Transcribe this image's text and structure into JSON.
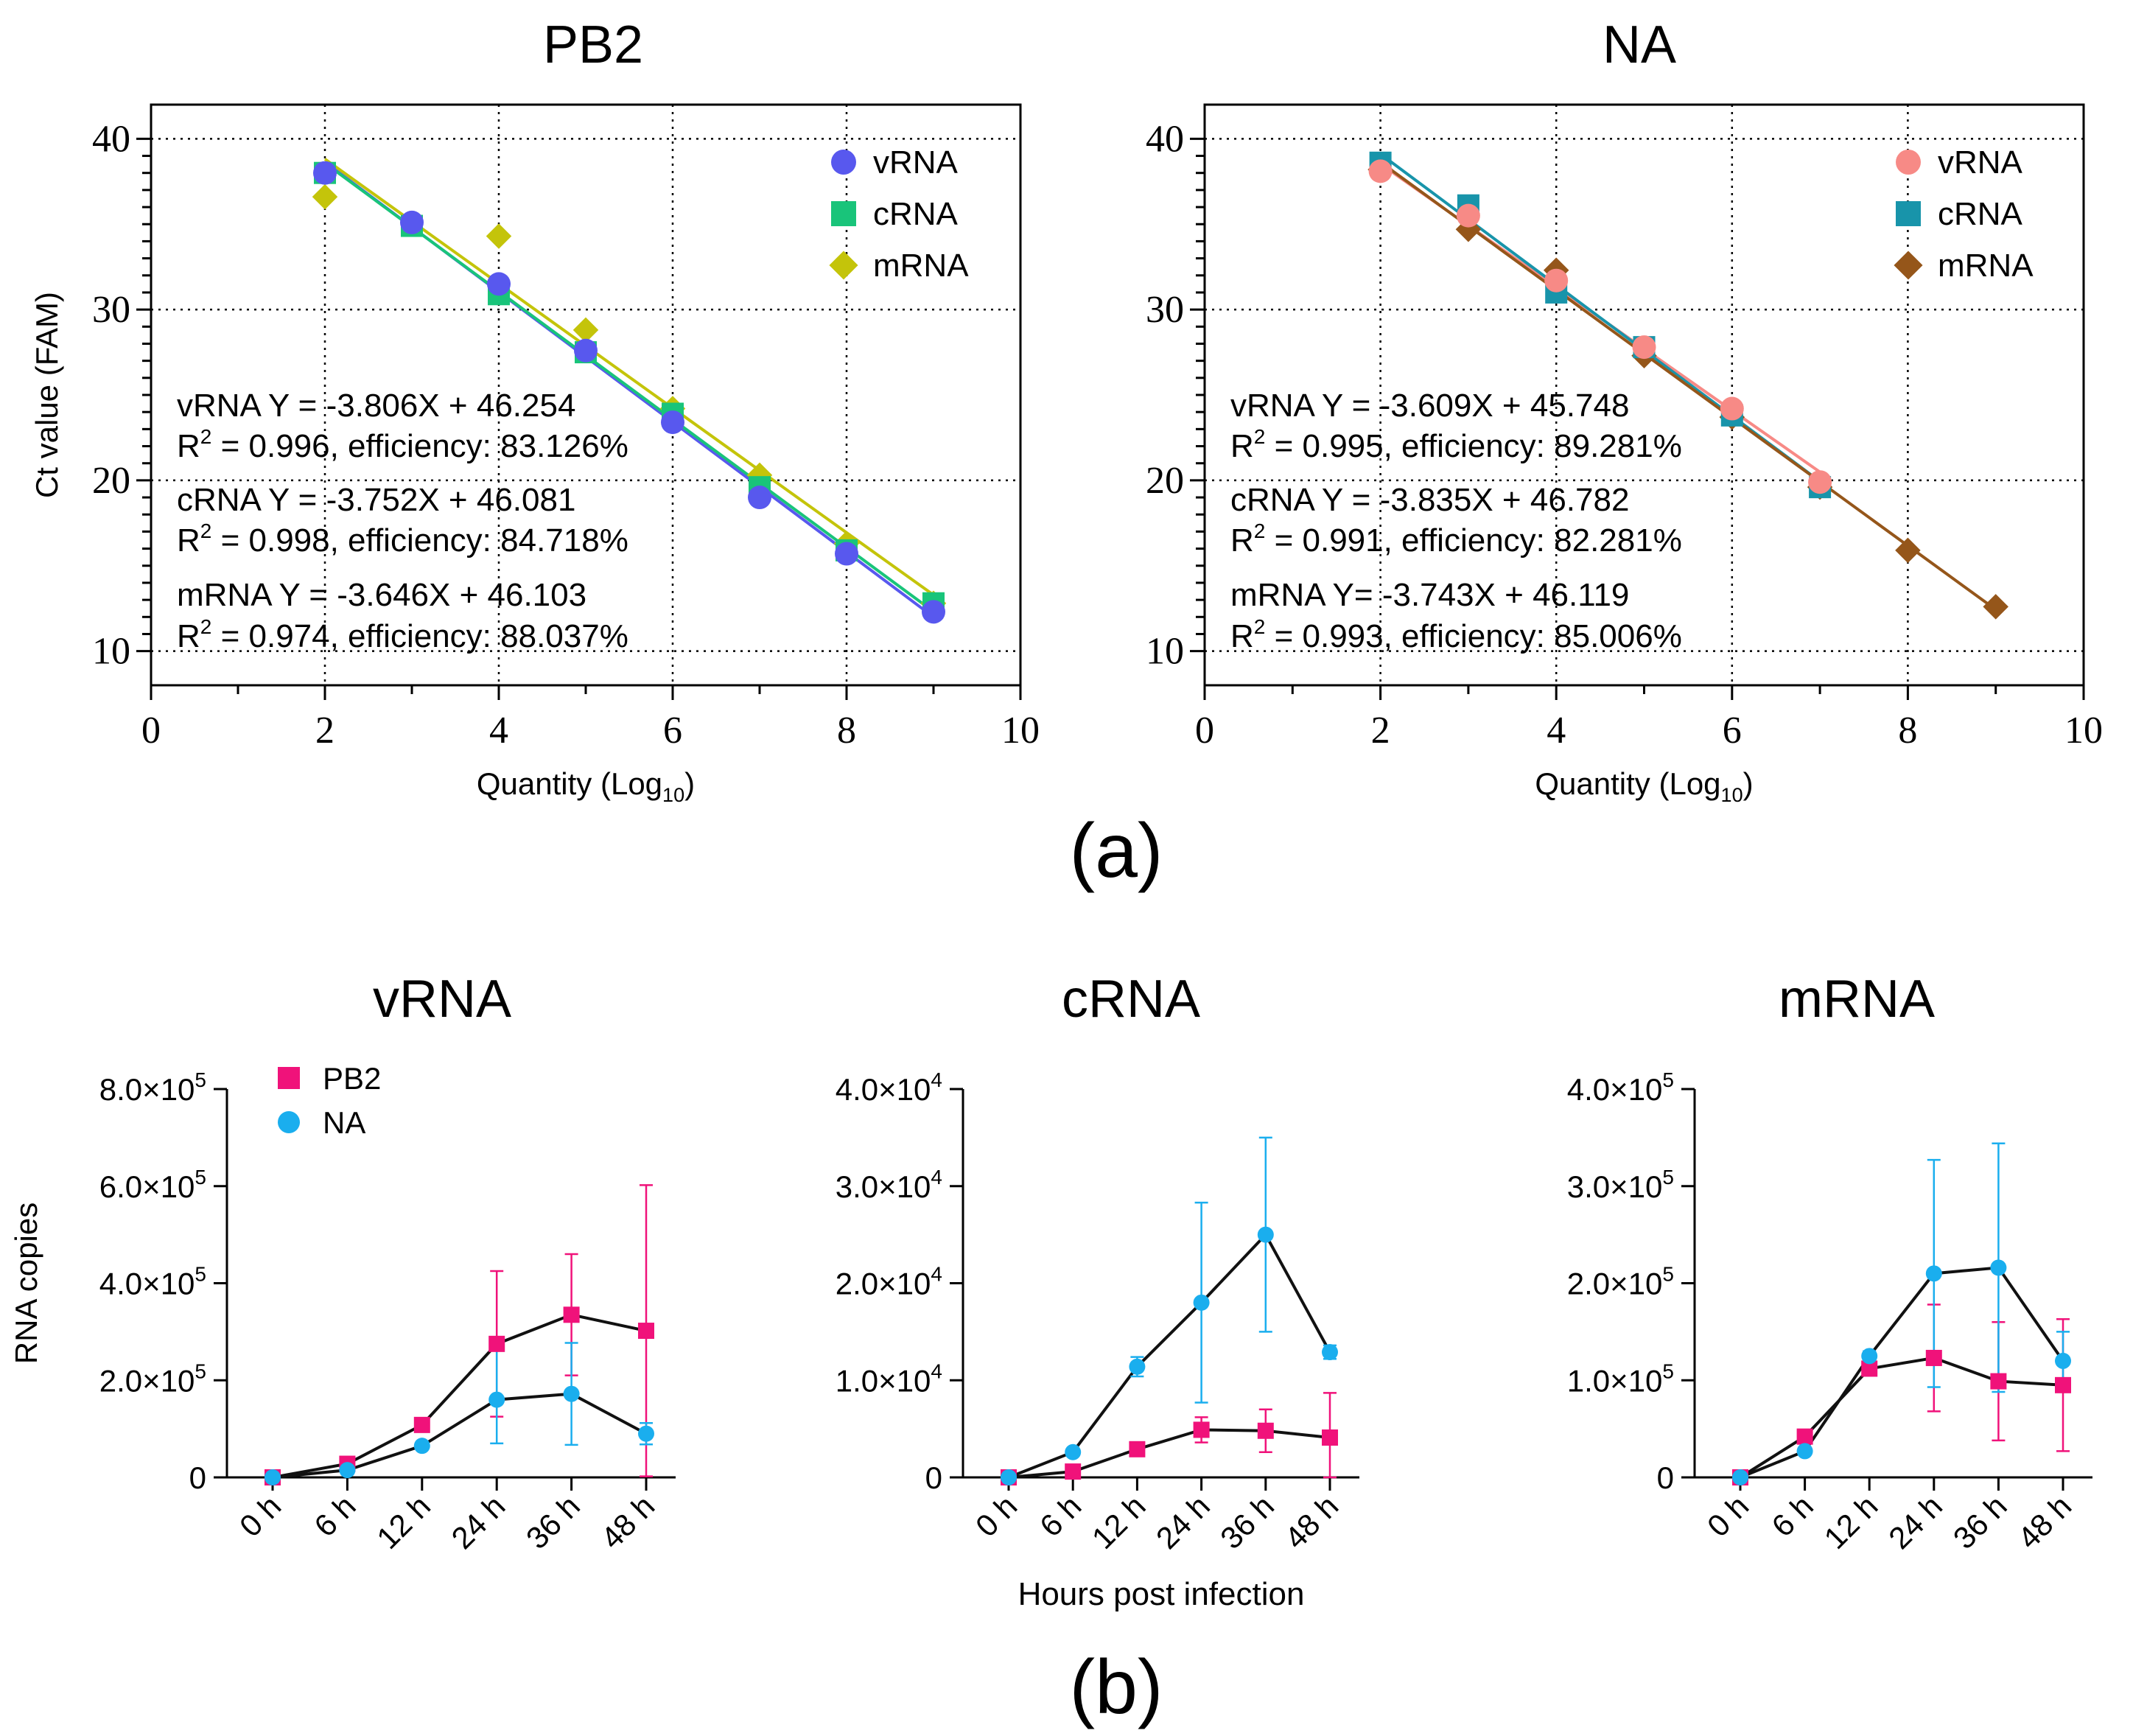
{
  "colors": {
    "pb2_vrna": "#5858ee",
    "pb2_crna": "#19c47a",
    "pb2_mrna": "#c4c40a",
    "na_vrna": "#f78a86",
    "na_crna": "#1894aa",
    "na_mrna": "#95561a",
    "pb2": "#f0127a",
    "na": "#1aaeee",
    "line_b": "#111111"
  },
  "panel_labels": {
    "a": "(a)",
    "b": "(b)"
  },
  "chart_data": [
    {
      "id": "pb2-standard-curve",
      "type": "scatter",
      "title": "PB2",
      "xlabel": "Quantity (Log",
      "xlabel_sub": "10",
      "xlabel_close": ")",
      "ylabel": "Ct value (FAM)",
      "xlim": [
        0,
        10
      ],
      "ylim": [
        8,
        42
      ],
      "xticks": [
        0,
        2,
        4,
        6,
        8,
        10
      ],
      "yticks": [
        10,
        20,
        30,
        40
      ],
      "grid": "dotted",
      "legend_position": "top-right",
      "series": [
        {
          "name": "vRNA",
          "marker": "circle",
          "color": "#5858ee",
          "x": [
            2,
            3,
            4,
            5,
            6,
            7,
            8,
            9
          ],
          "y": [
            38.0,
            35.1,
            31.5,
            27.6,
            23.4,
            19.0,
            15.7,
            12.3
          ],
          "fit": {
            "slope": -3.806,
            "intercept": 46.254
          }
        },
        {
          "name": "cRNA",
          "marker": "square",
          "color": "#19c47a",
          "x": [
            2,
            3,
            4,
            5,
            6,
            7,
            8,
            9
          ],
          "y": [
            38.0,
            34.9,
            30.9,
            27.5,
            23.9,
            19.6,
            15.9,
            12.8
          ],
          "fit": {
            "slope": -3.752,
            "intercept": 46.081
          }
        },
        {
          "name": "mRNA",
          "marker": "diamond",
          "color": "#c4c40a",
          "x": [
            2,
            4,
            5,
            6,
            7,
            8,
            9
          ],
          "y": [
            36.6,
            34.3,
            28.8,
            24.2,
            20.3,
            16.3,
            12.8
          ],
          "fit": {
            "slope": -3.646,
            "intercept": 46.103
          }
        }
      ],
      "annotations": [
        {
          "eq": "vRNA Y = -3.806X + 46.254",
          "r2_prefix": "R",
          "r2_sup": "2",
          "r2_rest": " = 0.996, efficiency: 83.126%"
        },
        {
          "eq": "cRNA Y = -3.752X + 46.081",
          "r2_prefix": "R",
          "r2_sup": "2",
          "r2_rest": " = 0.998, efficiency: 84.718%"
        },
        {
          "eq": "mRNA Y = -3.646X + 46.103",
          "r2_prefix": "R",
          "r2_sup": "2",
          "r2_rest": " = 0.974, efficiency: 88.037%"
        }
      ]
    },
    {
      "id": "na-standard-curve",
      "type": "scatter",
      "title": "NA",
      "xlabel": "Quantity (Log",
      "xlabel_sub": "10",
      "xlabel_close": ")",
      "ylabel": "",
      "xlim": [
        0,
        10
      ],
      "ylim": [
        8,
        42
      ],
      "xticks": [
        0,
        2,
        4,
        6,
        8,
        10
      ],
      "yticks": [
        10,
        20,
        30,
        40
      ],
      "grid": "dotted",
      "legend_position": "top-right",
      "series": [
        {
          "name": "vRNA",
          "marker": "circle",
          "color": "#f78a86",
          "x": [
            2,
            3,
            4,
            5,
            6,
            7
          ],
          "y": [
            38.1,
            35.5,
            31.7,
            27.8,
            24.2,
            19.9
          ],
          "fit": {
            "slope": -3.609,
            "intercept": 45.748
          }
        },
        {
          "name": "cRNA",
          "marker": "square",
          "color": "#1894aa",
          "x": [
            2,
            3,
            4,
            5,
            6,
            7
          ],
          "y": [
            38.6,
            36.1,
            31.0,
            27.8,
            23.8,
            19.6
          ],
          "fit": {
            "slope": -3.835,
            "intercept": 46.782
          }
        },
        {
          "name": "mRNA",
          "marker": "diamond",
          "color": "#95561a",
          "x": [
            2,
            3,
            4,
            5,
            6,
            7,
            8,
            9
          ],
          "y": [
            38.2,
            34.7,
            32.3,
            27.3,
            23.7,
            19.6,
            15.9,
            12.6
          ],
          "fit": {
            "slope": -3.743,
            "intercept": 46.119
          }
        }
      ],
      "annotations": [
        {
          "eq": "vRNA Y = -3.609X + 45.748",
          "r2_prefix": "R",
          "r2_sup": "2",
          "r2_rest": " = 0.995, efficiency: 89.281%"
        },
        {
          "eq": "cRNA Y = -3.835X + 46.782",
          "r2_prefix": "R",
          "r2_sup": "2",
          "r2_rest": " = 0.991, efficiency: 82.281%"
        },
        {
          "eq": "mRNA Y= -3.743X + 46.119",
          "r2_prefix": "R",
          "r2_sup": "2",
          "r2_rest": " = 0.993, efficiency: 85.006%"
        }
      ]
    },
    {
      "id": "vrna-time-course",
      "type": "line",
      "title": "vRNA",
      "xlabel": "",
      "ylabel": "RNA copies",
      "categories": [
        "0 h",
        "6 h",
        "12 h",
        "24 h",
        "36 h",
        "48 h"
      ],
      "ylim": [
        0,
        800000
      ],
      "yticks": [
        {
          "value": 0,
          "mant": "0",
          "exp": ""
        },
        {
          "value": 200000,
          "mant": "2.0×10",
          "exp": "5"
        },
        {
          "value": 400000,
          "mant": "4.0×10",
          "exp": "5"
        },
        {
          "value": 600000,
          "mant": "6.0×10",
          "exp": "5"
        },
        {
          "value": 800000,
          "mant": "8.0×10",
          "exp": "5"
        }
      ],
      "legend_position": "top-left",
      "series": [
        {
          "name": "PB2",
          "marker": "square",
          "color": "#f0127a",
          "values": [
            0,
            28000,
            108000,
            275000,
            335000,
            302000
          ],
          "err_upper": [
            0,
            5000,
            8000,
            150000,
            125000,
            300000
          ],
          "err_lower": [
            0,
            5000,
            8000,
            150000,
            125000,
            300000
          ]
        },
        {
          "name": "NA",
          "marker": "circle",
          "color": "#1aaeee",
          "values": [
            0,
            15000,
            65000,
            160000,
            172000,
            90000
          ],
          "err_upper": [
            0,
            4000,
            6000,
            110000,
            105000,
            22000
          ],
          "err_lower": [
            0,
            4000,
            6000,
            90000,
            105000,
            22000
          ]
        }
      ]
    },
    {
      "id": "crna-time-course",
      "type": "line",
      "title": "cRNA",
      "xlabel": "Hours post infection",
      "ylabel": "",
      "categories": [
        "0 h",
        "6 h",
        "12 h",
        "24 h",
        "36 h",
        "48 h"
      ],
      "ylim": [
        0,
        40000
      ],
      "yticks": [
        {
          "value": 0,
          "mant": "0",
          "exp": ""
        },
        {
          "value": 10000,
          "mant": "1.0×10",
          "exp": "4"
        },
        {
          "value": 20000,
          "mant": "2.0×10",
          "exp": "4"
        },
        {
          "value": 30000,
          "mant": "3.0×10",
          "exp": "4"
        },
        {
          "value": 40000,
          "mant": "4.0×10",
          "exp": "4"
        }
      ],
      "series": [
        {
          "name": "PB2",
          "marker": "square",
          "color": "#f0127a",
          "values": [
            0,
            600,
            2900,
            4900,
            4800,
            4100
          ],
          "err_upper": [
            0,
            150,
            300,
            1300,
            2200,
            4600
          ],
          "err_lower": [
            0,
            150,
            300,
            1300,
            2200,
            4100
          ]
        },
        {
          "name": "NA",
          "marker": "circle",
          "color": "#1aaeee",
          "values": [
            0,
            2600,
            11400,
            18000,
            25000,
            12900
          ],
          "err_upper": [
            0,
            200,
            1000,
            10300,
            10000,
            700
          ],
          "err_lower": [
            0,
            200,
            1000,
            10300,
            10000,
            700
          ]
        }
      ]
    },
    {
      "id": "mrna-time-course",
      "type": "line",
      "title": "mRNA",
      "xlabel": "",
      "ylabel": "",
      "categories": [
        "0 h",
        "6 h",
        "12 h",
        "24 h",
        "36 h",
        "48 h"
      ],
      "ylim": [
        0,
        400000
      ],
      "yticks": [
        {
          "value": 0,
          "mant": "0",
          "exp": ""
        },
        {
          "value": 100000,
          "mant": "1.0×10",
          "exp": "5"
        },
        {
          "value": 200000,
          "mant": "2.0×10",
          "exp": "5"
        },
        {
          "value": 300000,
          "mant": "3.0×10",
          "exp": "5"
        },
        {
          "value": 400000,
          "mant": "4.0×10",
          "exp": "5"
        }
      ],
      "series": [
        {
          "name": "PB2",
          "marker": "square",
          "color": "#f0127a",
          "values": [
            0,
            42000,
            112000,
            123000,
            99000,
            95000
          ],
          "err_upper": [
            0,
            3000,
            5000,
            55000,
            61000,
            68000
          ],
          "err_lower": [
            0,
            3000,
            5000,
            55000,
            61000,
            68000
          ]
        },
        {
          "name": "NA",
          "marker": "circle",
          "color": "#1aaeee",
          "values": [
            0,
            27000,
            125000,
            210000,
            216000,
            120000
          ],
          "err_upper": [
            0,
            2000,
            5000,
            117000,
            128000,
            30000
          ],
          "err_lower": [
            0,
            2000,
            5000,
            117000,
            128000,
            30000
          ]
        }
      ]
    }
  ]
}
